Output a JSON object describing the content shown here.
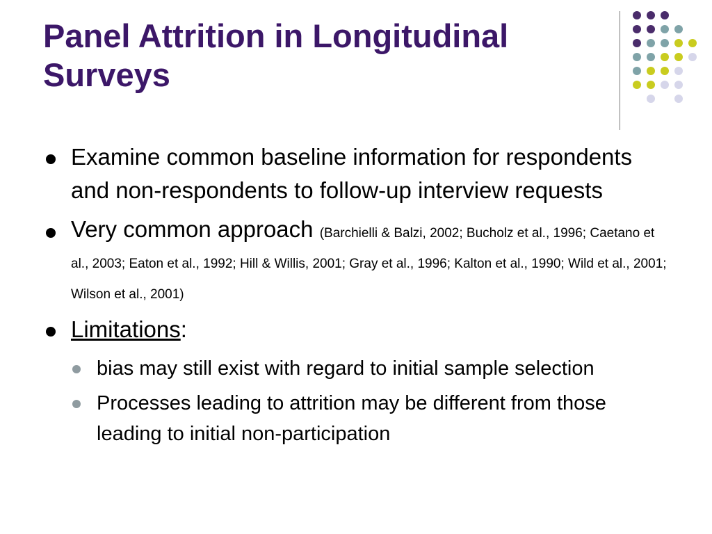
{
  "slide": {
    "title": "Panel Attrition in Longitudinal Surveys",
    "colors": {
      "title": "#3c1768",
      "dot_purple": "#4a2c6b",
      "dot_teal": "#7fa3a8",
      "dot_yellow": "#c9cc1f",
      "dot_lavender": "#d6d6ea",
      "sub_bullet": "#8f9ba0"
    },
    "decoration_icon": "dot-grid-decoration"
  },
  "bullets": [
    {
      "text": "Examine common baseline information for respondents and non-respondents to follow-up interview requests"
    },
    {
      "text": "Very common approach",
      "citation": "(Barchielli & Balzi, 2002; Bucholz et al., 1996; Caetano et al., 2003; Eaton et al., 1992; Hill & Willis, 2001; Gray et al., 1996; Kalton et al., 1990; Wild et al., 2001; Wilson et al., 2001)"
    },
    {
      "label": "Limitations",
      "suffix": ":",
      "sub_bullets": [
        {
          "text": "bias may still exist with regard to initial sample selection"
        },
        {
          "text": "Processes leading to attrition may be different from those leading to initial non-participation"
        }
      ]
    }
  ]
}
